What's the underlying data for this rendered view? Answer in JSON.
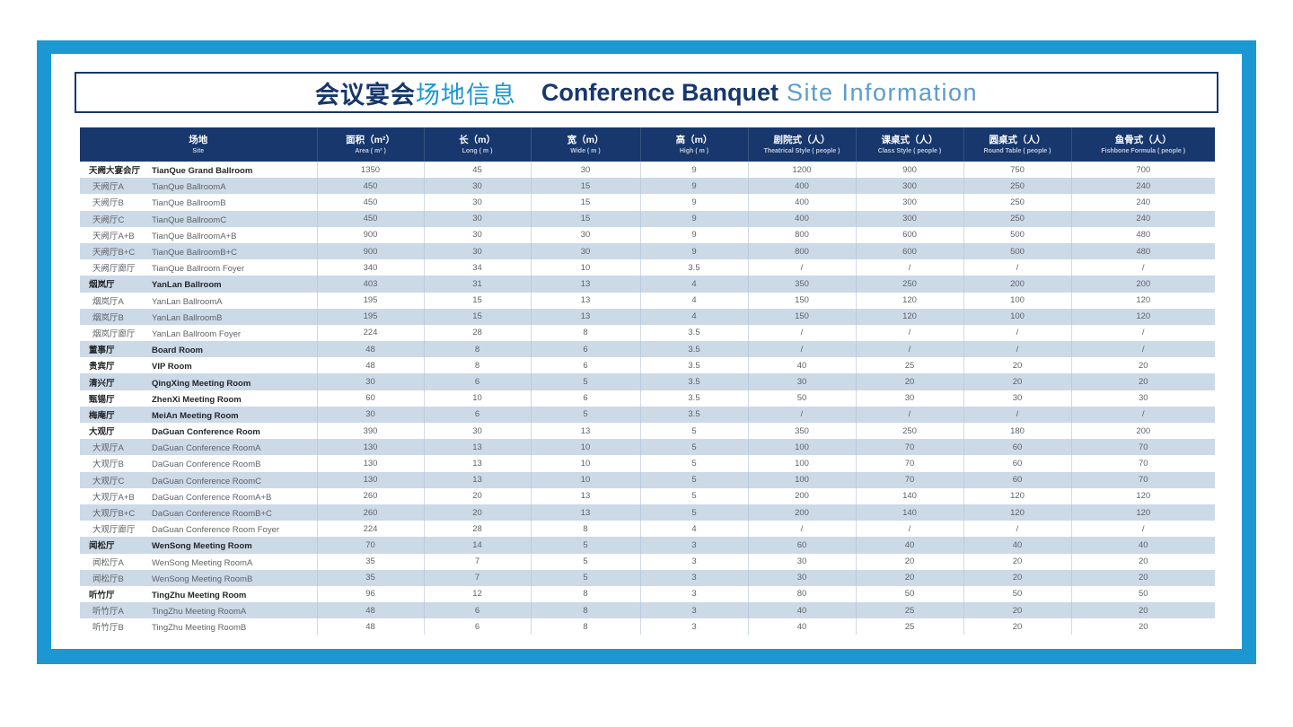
{
  "colors": {
    "frame": "#1b98d1",
    "navy": "#17376d",
    "steel": "#5b9cc9",
    "rowalt": "#ccd9e7"
  },
  "title": {
    "cn_bold": "会议宴会",
    "cn_light": "场地信息",
    "en_bold": "Conference Banquet",
    "en_light": "Site Information"
  },
  "table": {
    "columns": [
      {
        "cn": "场地",
        "en": "Site"
      },
      {
        "cn": "面积（m²）",
        "en": "Area ( m² )"
      },
      {
        "cn": "长（m）",
        "en": "Long ( m )"
      },
      {
        "cn": "宽（m）",
        "en": "Wide ( m )"
      },
      {
        "cn": "高（m）",
        "en": "High ( m )"
      },
      {
        "cn": "剧院式（人）",
        "en": "Theatrical Style ( people )"
      },
      {
        "cn": "课桌式（人）",
        "en": "Class Style ( people )"
      },
      {
        "cn": "圆桌式（人）",
        "en": "Round Table ( people )"
      },
      {
        "cn": "鱼骨式（人）",
        "en": "Fishbone Formula ( people )"
      }
    ],
    "rows": [
      {
        "cn": "天阙大宴会厅",
        "en": "TianQue Grand Ballroom",
        "group": true,
        "values": [
          "1350",
          "45",
          "30",
          "9",
          "1200",
          "900",
          "750",
          "700"
        ]
      },
      {
        "cn": "天阙厅A",
        "en": "TianQue BallroomA",
        "group": false,
        "values": [
          "450",
          "30",
          "15",
          "9",
          "400",
          "300",
          "250",
          "240"
        ]
      },
      {
        "cn": "天阙厅B",
        "en": "TianQue BallroomB",
        "group": false,
        "values": [
          "450",
          "30",
          "15",
          "9",
          "400",
          "300",
          "250",
          "240"
        ]
      },
      {
        "cn": "天阙厅C",
        "en": "TianQue BallroomC",
        "group": false,
        "values": [
          "450",
          "30",
          "15",
          "9",
          "400",
          "300",
          "250",
          "240"
        ]
      },
      {
        "cn": "天阙厅A+B",
        "en": "TianQue BallroomA+B",
        "group": false,
        "values": [
          "900",
          "30",
          "30",
          "9",
          "800",
          "600",
          "500",
          "480"
        ]
      },
      {
        "cn": "天阙厅B+C",
        "en": "TianQue BallroomB+C",
        "group": false,
        "values": [
          "900",
          "30",
          "30",
          "9",
          "800",
          "600",
          "500",
          "480"
        ]
      },
      {
        "cn": "天阙厅廊厅",
        "en": "TianQue Ballroom Foyer",
        "group": false,
        "values": [
          "340",
          "34",
          "10",
          "3.5",
          "/",
          "/",
          "/",
          "/"
        ]
      },
      {
        "cn": "烟岚厅",
        "en": "YanLan Ballroom",
        "group": true,
        "values": [
          "403",
          "31",
          "13",
          "4",
          "350",
          "250",
          "200",
          "200"
        ]
      },
      {
        "cn": "烟岚厅A",
        "en": "YanLan BallroomA",
        "group": false,
        "values": [
          "195",
          "15",
          "13",
          "4",
          "150",
          "120",
          "100",
          "120"
        ]
      },
      {
        "cn": "烟岚厅B",
        "en": "YanLan BallroomB",
        "group": false,
        "values": [
          "195",
          "15",
          "13",
          "4",
          "150",
          "120",
          "100",
          "120"
        ]
      },
      {
        "cn": "烟岚厅廊厅",
        "en": "YanLan Ballroom Foyer",
        "group": false,
        "values": [
          "224",
          "28",
          "8",
          "3.5",
          "/",
          "/",
          "/",
          "/"
        ]
      },
      {
        "cn": "董事厅",
        "en": "Board Room",
        "group": true,
        "values": [
          "48",
          "8",
          "6",
          "3.5",
          "/",
          "/",
          "/",
          "/"
        ]
      },
      {
        "cn": "贵宾厅",
        "en": "VIP Room",
        "group": true,
        "values": [
          "48",
          "8",
          "6",
          "3.5",
          "40",
          "25",
          "20",
          "20"
        ]
      },
      {
        "cn": "清兴厅",
        "en": "QingXing Meeting Room",
        "group": true,
        "values": [
          "30",
          "6",
          "5",
          "3.5",
          "30",
          "20",
          "20",
          "20"
        ]
      },
      {
        "cn": "甄锡厅",
        "en": "ZhenXi Meeting Room",
        "group": true,
        "values": [
          "60",
          "10",
          "6",
          "3.5",
          "50",
          "30",
          "30",
          "30"
        ]
      },
      {
        "cn": "梅庵厅",
        "en": "MeiAn Meeting Room",
        "group": true,
        "values": [
          "30",
          "6",
          "5",
          "3.5",
          "/",
          "/",
          "/",
          "/"
        ]
      },
      {
        "cn": "大观厅",
        "en": "DaGuan Conference Room",
        "group": true,
        "values": [
          "390",
          "30",
          "13",
          "5",
          "350",
          "250",
          "180",
          "200"
        ]
      },
      {
        "cn": "大观厅A",
        "en": "DaGuan Conference RoomA",
        "group": false,
        "values": [
          "130",
          "13",
          "10",
          "5",
          "100",
          "70",
          "60",
          "70"
        ]
      },
      {
        "cn": "大观厅B",
        "en": "DaGuan Conference RoomB",
        "group": false,
        "values": [
          "130",
          "13",
          "10",
          "5",
          "100",
          "70",
          "60",
          "70"
        ]
      },
      {
        "cn": "大观厅C",
        "en": "DaGuan Conference RoomC",
        "group": false,
        "values": [
          "130",
          "13",
          "10",
          "5",
          "100",
          "70",
          "60",
          "70"
        ]
      },
      {
        "cn": "大观厅A+B",
        "en": "DaGuan Conference RoomA+B",
        "group": false,
        "values": [
          "260",
          "20",
          "13",
          "5",
          "200",
          "140",
          "120",
          "120"
        ]
      },
      {
        "cn": "大观厅B+C",
        "en": "DaGuan Conference RoomB+C",
        "group": false,
        "values": [
          "260",
          "20",
          "13",
          "5",
          "200",
          "140",
          "120",
          "120"
        ]
      },
      {
        "cn": "大观厅廊厅",
        "en": "DaGuan Conference Room Foyer",
        "group": false,
        "values": [
          "224",
          "28",
          "8",
          "4",
          "/",
          "/",
          "/",
          "/"
        ]
      },
      {
        "cn": "闻松厅",
        "en": "WenSong Meeting Room",
        "group": true,
        "values": [
          "70",
          "14",
          "5",
          "3",
          "60",
          "40",
          "40",
          "40"
        ]
      },
      {
        "cn": "闻松厅A",
        "en": "WenSong Meeting RoomA",
        "group": false,
        "values": [
          "35",
          "7",
          "5",
          "3",
          "30",
          "20",
          "20",
          "20"
        ]
      },
      {
        "cn": "闻松厅B",
        "en": "WenSong Meeting RoomB",
        "group": false,
        "values": [
          "35",
          "7",
          "5",
          "3",
          "30",
          "20",
          "20",
          "20"
        ]
      },
      {
        "cn": "听竹厅",
        "en": "TingZhu Meeting Room",
        "group": true,
        "values": [
          "96",
          "12",
          "8",
          "3",
          "80",
          "50",
          "50",
          "50"
        ]
      },
      {
        "cn": "听竹厅A",
        "en": "TingZhu Meeting RoomA",
        "group": false,
        "values": [
          "48",
          "6",
          "8",
          "3",
          "40",
          "25",
          "20",
          "20"
        ]
      },
      {
        "cn": "听竹厅B",
        "en": "TingZhu Meeting RoomB",
        "group": false,
        "values": [
          "48",
          "6",
          "8",
          "3",
          "40",
          "25",
          "20",
          "20"
        ]
      }
    ]
  }
}
